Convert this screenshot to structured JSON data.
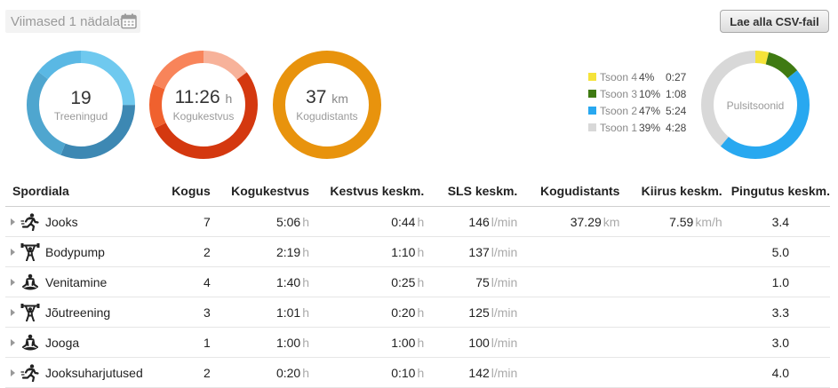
{
  "header": {
    "period_label": "Viimased 1 nädalat",
    "csv_button": "Lae alla CSV-fail"
  },
  "summary": {
    "sessions": {
      "value": "19",
      "label": "Treeningud"
    },
    "duration": {
      "value": "11:26",
      "unit": "h",
      "label": "Kogukestvus"
    },
    "distance": {
      "value": "37",
      "unit": "km",
      "label": "Kogudistants"
    }
  },
  "heart_rate": {
    "label": "Pulsitsoonid",
    "zones": [
      {
        "name": "Tsoon 4",
        "percent": "4%",
        "time": "0:27",
        "color": "#f5e33a"
      },
      {
        "name": "Tsoon 3",
        "percent": "10%",
        "time": "1:08",
        "color": "#3f7a12"
      },
      {
        "name": "Tsoon 2",
        "percent": "47%",
        "time": "5:24",
        "color": "#28a8f0"
      },
      {
        "name": "Tsoon 1",
        "percent": "39%",
        "time": "4:28",
        "color": "#d8d8d8"
      }
    ]
  },
  "table": {
    "headers": [
      "Spordiala",
      "Kogus",
      "Kogukestvus",
      "Kestvus keskm.",
      "SLS keskm.",
      "Kogudistants",
      "Kiirus keskm.",
      "Pingutus keskm."
    ],
    "rows": [
      {
        "sport": "Jooks",
        "icon": "running-icon",
        "count": "7",
        "duration": "5:06",
        "duration_unit": "h",
        "avg_duration": "0:44",
        "avg_duration_unit": "h",
        "cadence": "146",
        "cadence_unit": "l/min",
        "distance": "37.29",
        "distance_unit": "km",
        "speed": "7.59",
        "speed_unit": "km/h",
        "effort": "3.4"
      },
      {
        "sport": "Bodypump",
        "icon": "weightlifting-icon",
        "count": "2",
        "duration": "2:19",
        "duration_unit": "h",
        "avg_duration": "1:10",
        "avg_duration_unit": "h",
        "cadence": "137",
        "cadence_unit": "l/min",
        "distance": "",
        "distance_unit": "",
        "speed": "",
        "speed_unit": "",
        "effort": "5.0"
      },
      {
        "sport": "Venitamine",
        "icon": "meditation-icon",
        "count": "4",
        "duration": "1:40",
        "duration_unit": "h",
        "avg_duration": "0:25",
        "avg_duration_unit": "h",
        "cadence": "75",
        "cadence_unit": "l/min",
        "distance": "",
        "distance_unit": "",
        "speed": "",
        "speed_unit": "",
        "effort": "1.0"
      },
      {
        "sport": "Jõutreening",
        "icon": "weightlifting-icon",
        "count": "3",
        "duration": "1:01",
        "duration_unit": "h",
        "avg_duration": "0:20",
        "avg_duration_unit": "h",
        "cadence": "125",
        "cadence_unit": "l/min",
        "distance": "",
        "distance_unit": "",
        "speed": "",
        "speed_unit": "",
        "effort": "3.3"
      },
      {
        "sport": "Jooga",
        "icon": "meditation-icon",
        "count": "1",
        "duration": "1:00",
        "duration_unit": "h",
        "avg_duration": "1:00",
        "avg_duration_unit": "h",
        "cadence": "100",
        "cadence_unit": "l/min",
        "distance": "",
        "distance_unit": "",
        "speed": "",
        "speed_unit": "",
        "effort": "3.0"
      },
      {
        "sport": "Jooksuharjutused",
        "icon": "running-icon",
        "count": "2",
        "duration": "0:20",
        "duration_unit": "h",
        "avg_duration": "0:10",
        "avg_duration_unit": "h",
        "cadence": "142",
        "cadence_unit": "l/min",
        "distance": "",
        "distance_unit": "",
        "speed": "",
        "speed_unit": "",
        "effort": "4.0"
      }
    ]
  }
}
